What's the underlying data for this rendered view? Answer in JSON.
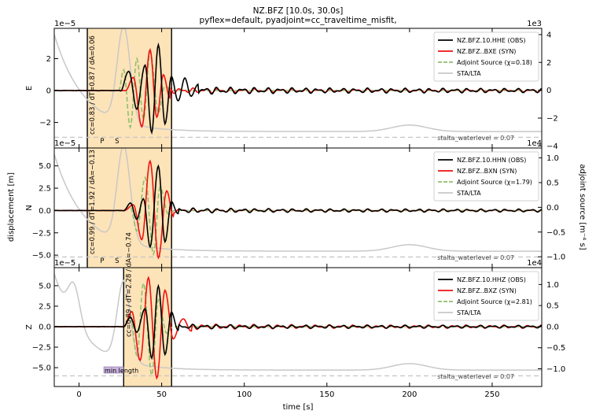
{
  "figure": {
    "title": "NZ.BFZ [10.0s, 30.0s]",
    "subtitle": "pyflex=default,  pyadjoint=cc_traveltime_misfit,",
    "xlabel": "time [s]",
    "ylabel_left": "displacement [m]",
    "ylabel_right": "adjoint source [m⁻⁴ s]",
    "colors": {
      "obs": "#000000",
      "syn": "#ee1111",
      "adj": "#8fbf6f",
      "stalta": "#c8c8c8",
      "window": "#fde3b8",
      "axis": "#000000"
    }
  },
  "chart_data": [
    {
      "type": "line",
      "component": "E",
      "x_range": [
        -15,
        280
      ],
      "x_ticks": [
        "0",
        "50",
        "100",
        "150",
        "200",
        "250"
      ],
      "y_left": {
        "multiplier": "1e−5",
        "ticks": [
          "−2",
          "0",
          "2"
        ],
        "range": [
          -3.6,
          3.9
        ]
      },
      "y_right": {
        "multiplier": "1e3",
        "ticks": [
          "−4",
          "−2",
          "0",
          "2",
          "4"
        ],
        "range": [
          -4.15,
          4.45
        ]
      },
      "window": {
        "start": 5,
        "end": 56,
        "label": "cc=0.83 / dT=0.87 / dA=0.06"
      },
      "phases": [
        {
          "label": "P",
          "x": 14
        },
        {
          "label": "S",
          "x": 23
        }
      ],
      "stalta_waterlevel": "stalta_waterlevel = 0.07",
      "legend": [
        "NZ.BFZ.10.HHE (OBS)",
        "NZ.BFZ..BXE (SYN)",
        "Adjoint Source (χ=0.18)",
        "STA/LTA"
      ],
      "series": [
        {
          "name": "NZ.BFZ.10.HHE (OBS)",
          "peaks": [
            [
              25,
              0.0
            ],
            [
              30,
              1.2
            ],
            [
              35,
              -1.1
            ],
            [
              40,
              1.6
            ],
            [
              44,
              -2.6
            ],
            [
              48,
              2.9
            ],
            [
              52,
              -2.1
            ],
            [
              56,
              0.9
            ],
            [
              60,
              -0.7
            ],
            [
              64,
              0.8
            ],
            [
              68,
              -0.4
            ],
            [
              72,
              0.45
            ]
          ],
          "coda_amp": 0.25
        },
        {
          "name": "NZ.BFZ..BXE (SYN)",
          "peaks": [
            [
              28,
              0.0
            ],
            [
              33,
              0.8
            ],
            [
              38,
              -2.3
            ],
            [
              43,
              2.6
            ],
            [
              47,
              -1.7
            ],
            [
              51,
              1.0
            ],
            [
              55,
              -0.5
            ]
          ],
          "coda_amp": 0.18
        },
        {
          "name": "Adjoint Source (χ=0.18)",
          "peaks": [
            [
              24,
              0.0
            ],
            [
              27,
              1.3
            ],
            [
              31,
              -2.3
            ],
            [
              35,
              2.0
            ],
            [
              39,
              -1.8
            ],
            [
              43,
              2.4
            ],
            [
              48,
              -1.4
            ],
            [
              52,
              0.3
            ],
            [
              56,
              0.0
            ]
          ]
        }
      ]
    },
    {
      "type": "line",
      "component": "N",
      "x_range": [
        -15,
        280
      ],
      "x_ticks": [
        "0",
        "50",
        "100",
        "150",
        "200",
        "250"
      ],
      "y_left": {
        "multiplier": "1e−5",
        "ticks": [
          "−5.0",
          "−2.5",
          "0.0",
          "2.5",
          "5.0"
        ],
        "range": [
          -6.4,
          7.0
        ]
      },
      "y_right": {
        "multiplier": "1e4",
        "ticks": [
          "−1.0",
          "−0.5",
          "0.0",
          "0.5",
          "1.0"
        ],
        "range": [
          -1.22,
          1.2
        ]
      },
      "window": {
        "start": 5,
        "end": 56,
        "label": "cc=0.99 / dT=1.92 / dA=−0.13"
      },
      "phases": [
        {
          "label": "P",
          "x": 14
        },
        {
          "label": "S",
          "x": 23
        }
      ],
      "stalta_waterlevel": "stalta_waterlevel = 0.07",
      "legend": [
        "NZ.BFZ.10.HHN (OBS)",
        "NZ.BFZ..BXN (SYN)",
        "Adjoint Source (χ=1.79)",
        "STA/LTA"
      ],
      "series": [
        {
          "name": "NZ.BFZ.10.HHN (OBS)",
          "peaks": [
            [
              27,
              0.0
            ],
            [
              31,
              0.8
            ],
            [
              35,
              -0.9
            ],
            [
              39,
              1.3
            ],
            [
              43,
              -4.0
            ],
            [
              48,
              5.0
            ],
            [
              52,
              -3.5
            ],
            [
              56,
              1.0
            ],
            [
              60,
              -0.4
            ]
          ],
          "coda_amp": 0.3
        },
        {
          "name": "NZ.BFZ..BXN (SYN)",
          "peaks": [
            [
              27,
              0.0
            ],
            [
              33,
              0.6
            ],
            [
              38,
              -3.3
            ],
            [
              43,
              5.6
            ],
            [
              48,
              -5.3
            ],
            [
              53,
              2.2
            ],
            [
              57,
              -0.6
            ]
          ],
          "coda_amp": 0.25
        },
        {
          "name": "Adjoint Source (χ=1.79)",
          "peaks": [
            [
              26,
              0.0
            ],
            [
              31,
              0.4
            ],
            [
              35,
              -2.3
            ],
            [
              40,
              3.7
            ],
            [
              45,
              -4.9
            ],
            [
              49,
              2.6
            ],
            [
              54,
              -0.4
            ],
            [
              58,
              0.0
            ]
          ]
        }
      ]
    },
    {
      "type": "line",
      "component": "Z",
      "x_range": [
        -15,
        280
      ],
      "x_ticks": [
        "0",
        "50",
        "100",
        "150",
        "200",
        "250"
      ],
      "y_left": {
        "multiplier": "1e−5",
        "ticks": [
          "−5.0",
          "−2.5",
          "0.0",
          "2.5",
          "5.0"
        ],
        "range": [
          -7.3,
          7.2
        ]
      },
      "y_right": {
        "multiplier": "1e4",
        "ticks": [
          "−1.0",
          "−0.5",
          "0.0",
          "0.5",
          "1.0"
        ],
        "range": [
          -1.42,
          1.4
        ]
      },
      "window": {
        "start": 27,
        "end": 56,
        "label": "cc=0.89 / dT=2.28 / dA=−0.74"
      },
      "min_length": {
        "start": 15,
        "end": 27,
        "label": "min length"
      },
      "stalta_waterlevel": "stalta_waterlevel = 0.07",
      "legend": [
        "NZ.BFZ.10.HHZ (OBS)",
        "NZ.BFZ..BXZ (SYN)",
        "Adjoint Source (χ=2.81)",
        "STA/LTA"
      ],
      "series": [
        {
          "name": "NZ.BFZ.10.HHZ (OBS)",
          "peaks": [
            [
              27,
              0.0
            ],
            [
              31,
              1.1
            ],
            [
              35,
              -0.6
            ],
            [
              40,
              2.2
            ],
            [
              44,
              -3.8
            ],
            [
              48,
              5.0
            ],
            [
              52,
              -3.4
            ],
            [
              56,
              1.8
            ],
            [
              60,
              -0.5
            ]
          ],
          "coda_amp": 0.3
        },
        {
          "name": "NZ.BFZ..BXZ (SYN)",
          "peaks": [
            [
              27,
              0.0
            ],
            [
              32,
              1.8
            ],
            [
              37,
              -4.2
            ],
            [
              42,
              6.0
            ],
            [
              47,
              -6.3
            ],
            [
              52,
              4.4
            ],
            [
              57,
              -1.4
            ],
            [
              63,
              1.0
            ],
            [
              68,
              -0.6
            ]
          ],
          "coda_amp": 0.35
        },
        {
          "name": "Adjoint Source (χ=2.81)",
          "peaks": [
            [
              27,
              0.0
            ],
            [
              31,
              1.4
            ],
            [
              35,
              -3.5
            ],
            [
              39,
              5.3
            ],
            [
              44,
              -5.9
            ],
            [
              48,
              3.3
            ],
            [
              53,
              -0.8
            ],
            [
              57,
              0.0
            ]
          ]
        }
      ]
    }
  ]
}
